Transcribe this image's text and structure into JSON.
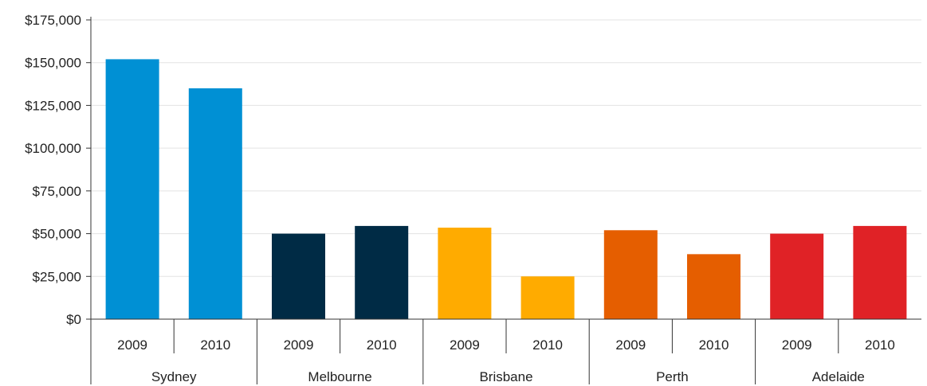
{
  "chart_data": {
    "type": "bar",
    "title": "",
    "xlabel": "",
    "ylabel": "",
    "ylim": [
      0,
      175000
    ],
    "yticks": [
      0,
      25000,
      50000,
      75000,
      100000,
      125000,
      150000,
      175000
    ],
    "ytick_labels": [
      "$0",
      "$25,000",
      "$50,000",
      "$75,000",
      "$100,000",
      "$125,000",
      "$150,000",
      "$175,000"
    ],
    "grid": true,
    "legend": "none",
    "groups": [
      {
        "name": "Sydney",
        "color": "#0090d4",
        "bars": [
          {
            "category": "2009",
            "value": 152000
          },
          {
            "category": "2010",
            "value": 135000
          }
        ]
      },
      {
        "name": "Melbourne",
        "color": "#002b45",
        "bars": [
          {
            "category": "2009",
            "value": 50000
          },
          {
            "category": "2010",
            "value": 54500
          }
        ]
      },
      {
        "name": "Brisbane",
        "color": "#ffab00",
        "bars": [
          {
            "category": "2009",
            "value": 53500
          },
          {
            "category": "2010",
            "value": 25000
          }
        ]
      },
      {
        "name": "Perth",
        "color": "#e55e00",
        "bars": [
          {
            "category": "2009",
            "value": 52000
          },
          {
            "category": "2010",
            "value": 38000
          }
        ]
      },
      {
        "name": "Adelaide",
        "color": "#e02226",
        "bars": [
          {
            "category": "2009",
            "value": 50000
          },
          {
            "category": "2010",
            "value": 54500
          }
        ]
      }
    ]
  }
}
